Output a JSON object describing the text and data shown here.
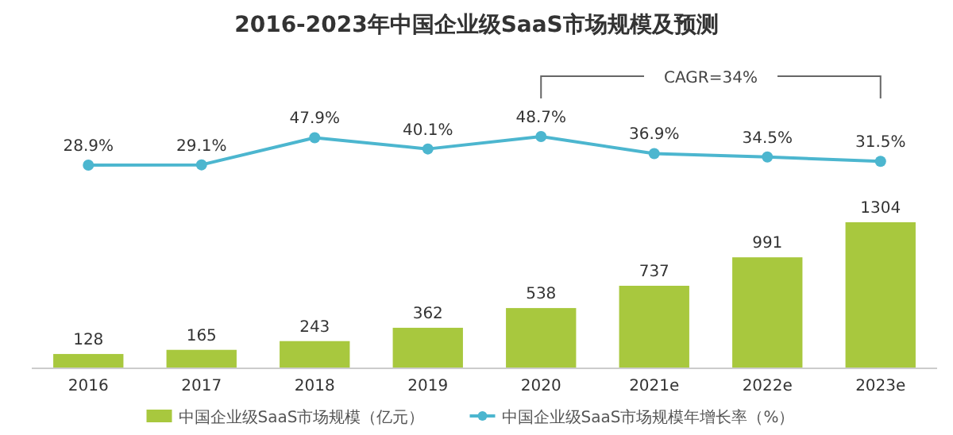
{
  "chart_data": [
    {
      "type": "line",
      "title": "2016-2023年中国企业级SaaS市场规模及预测",
      "categories": [
        null,
        null,
        null,
        null,
        null,
        null,
        null,
        null
      ],
      "series": [
        {
          "name": "中国企业级SaaS市场规模年增长率（%）",
          "color": "#4cb6cf",
          "values": [
            28.9,
            29.1,
            47.9,
            40.1,
            48.7,
            36.9,
            34.5,
            31.5
          ],
          "value_labels": [
            "28.9%",
            "29.1%",
            "47.9%",
            "40.1%",
            "48.7%",
            "36.9%",
            "34.5%",
            "31.5%"
          ]
        }
      ],
      "marker": "circle",
      "annotations": [
        "CAGR=34%"
      ],
      "tick_labels": false,
      "legend": "bottom"
    },
    {
      "type": "bar",
      "categories": [
        "2016",
        "2017",
        "2018",
        "2019",
        "2020",
        "2021e",
        "2022e",
        "2023e"
      ],
      "series": [
        {
          "name": "中国企业级SaaS市场规模（亿元）",
          "color": "#a8c83e",
          "values": [
            128,
            165,
            243,
            362,
            538,
            737,
            991,
            1304
          ]
        }
      ],
      "data_labels": true,
      "tick_labels": "x",
      "legend": "bottom"
    }
  ]
}
